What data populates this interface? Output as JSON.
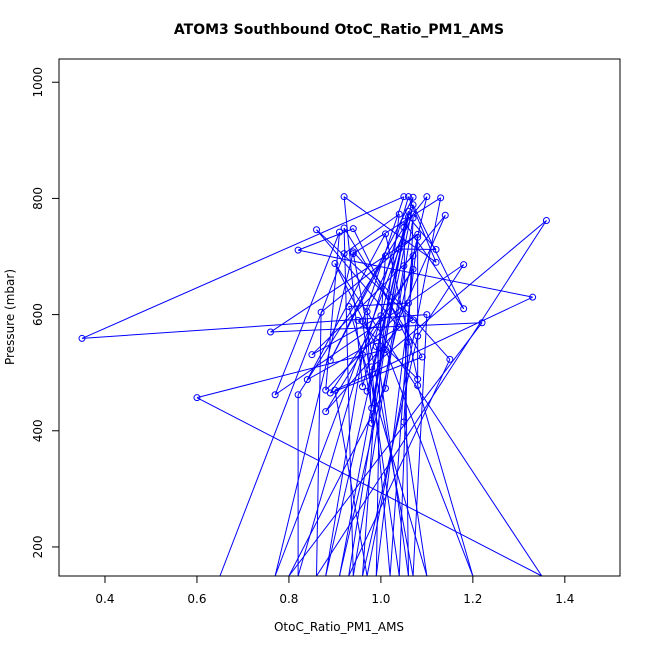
{
  "chart_data": {
    "type": "line",
    "title": "ATOM3 Southbound OtoC_Ratio_PM1_AMS",
    "xlabel": "OtoC_Ratio_PM1_AMS",
    "ylabel": "Pressure (mbar)",
    "xlim": [
      0.3,
      1.52
    ],
    "ylim": [
      1040,
      150
    ],
    "y_reversed": true,
    "grid": false,
    "line_color": "#0000ff",
    "xticks": [
      0.4,
      0.6,
      0.8,
      1.0,
      1.2,
      1.4
    ],
    "yticks": [
      200,
      400,
      600,
      800,
      1000
    ],
    "xtick_labels": [
      "0.4",
      "0.6",
      "0.8",
      "1.0",
      "1.2",
      "1.4"
    ],
    "ytick_labels": [
      "200",
      "400",
      "600",
      "800",
      "1000"
    ],
    "series": [
      {
        "points": [
          [
            0.65,
            150
          ],
          [
            0.92,
            705
          ],
          [
            1.04,
            773
          ],
          [
            0.98,
            413
          ],
          [
            0.97,
            605
          ],
          [
            1.07,
            773
          ],
          [
            1.1,
            803
          ],
          [
            0.91,
            150
          ],
          [
            1.06,
            778
          ],
          [
            0.96,
            476
          ],
          [
            0.92,
            803
          ],
          [
            1.12,
            690
          ],
          [
            1.06,
            803
          ],
          [
            0.82,
            150
          ],
          [
            0.82,
            462
          ],
          [
            1.05,
            750
          ],
          [
            0.93,
            150
          ],
          [
            1.15,
            523
          ],
          [
            0.94,
            708
          ],
          [
            0.77,
            150
          ],
          [
            1.04,
            713
          ],
          [
            1.12,
            712
          ],
          [
            1.06,
            768
          ],
          [
            0.88,
            150
          ],
          [
            0.96,
            531
          ],
          [
            0.98,
            439
          ],
          [
            1.07,
            789
          ],
          [
            1.18,
            610
          ],
          [
            1.05,
            760
          ],
          [
            1.06,
            150
          ],
          [
            0.99,
            545
          ],
          [
            0.9,
            688
          ],
          [
            1.35,
            150
          ],
          [
            0.6,
            457
          ],
          [
            1.01,
            540
          ],
          [
            1.2,
            150
          ],
          [
            1.08,
            478
          ],
          [
            1.08,
            733
          ],
          [
            0.99,
            150
          ],
          [
            1.0,
            598
          ],
          [
            0.85,
            531
          ],
          [
            1.07,
            701
          ],
          [
            1.02,
            150
          ],
          [
            0.98,
            510
          ],
          [
            1.36,
            762
          ],
          [
            0.86,
            150
          ],
          [
            0.87,
            604
          ],
          [
            1.08,
            738
          ],
          [
            0.76,
            570
          ],
          [
            1.22,
            586
          ],
          [
            0.8,
            150
          ],
          [
            1.01,
            473
          ],
          [
            1.07,
            766
          ],
          [
            1.04,
            150
          ],
          [
            0.96,
            589
          ],
          [
            1.05,
            803
          ],
          [
            0.35,
            559
          ],
          [
            1.1,
            600
          ],
          [
            1.07,
            150
          ],
          [
            0.94,
            705
          ],
          [
            1.13,
            801
          ],
          [
            0.97,
            150
          ],
          [
            0.9,
            470
          ],
          [
            1.33,
            630
          ],
          [
            0.82,
            711
          ],
          [
            0.94,
            748
          ],
          [
            1.06,
            553
          ],
          [
            1.05,
            415
          ],
          [
            1.1,
            150
          ],
          [
            0.93,
            614
          ],
          [
            1.06,
            620
          ],
          [
            0.88,
            470
          ],
          [
            0.91,
            742
          ],
          [
            0.77,
            462
          ],
          [
            1.18,
            686
          ],
          [
            1.08,
            563
          ],
          [
            0.96,
            150
          ],
          [
            1.01,
            701
          ],
          [
            0.89,
            521
          ],
          [
            1.07,
            802
          ],
          [
            0.97,
            468
          ],
          [
            1.14,
            771
          ],
          [
            1.05,
            684
          ],
          [
            0.94,
            150
          ],
          [
            0.92,
            749
          ],
          [
            1.09,
            527
          ],
          [
            0.89,
            465
          ],
          [
            1.07,
            678
          ],
          [
            0.88,
            433
          ],
          [
            1.04,
            578
          ],
          [
            0.86,
            746
          ],
          [
            1.07,
            591
          ],
          [
            0.84,
            488
          ],
          [
            1.01,
            739
          ],
          [
            1.08,
            489
          ],
          [
            0.95,
            590
          ]
        ]
      }
    ]
  }
}
